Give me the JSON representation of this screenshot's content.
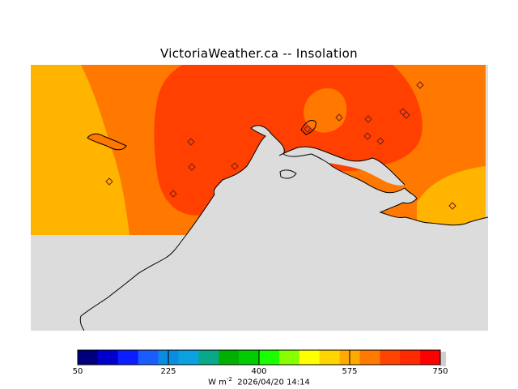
{
  "title": "VictoriaWeather.ca  --  Insolation",
  "colorbar": {
    "colors": [
      "#00007f",
      "#0000cc",
      "#0a1eff",
      "#1b5cff",
      "#0a8de0",
      "#0ca0e0",
      "#0aa88a",
      "#00b000",
      "#00cc00",
      "#19ff00",
      "#88ff00",
      "#ffff00",
      "#ffd500",
      "#ffaa00",
      "#ff7a00",
      "#ff4400",
      "#ff2a00",
      "#ff0000"
    ],
    "tick_labels": [
      "50",
      "225",
      "400",
      "575",
      "750"
    ],
    "min": 50,
    "max": 750
  },
  "units": "W m",
  "units_exponent": "-2",
  "timestamp": "2026/04/20 14:14",
  "palette": {
    "yellow_orange": "#ffb400",
    "orange": "#ff7800",
    "red_orange": "#ff4000",
    "land_gray": "#dcdcdc",
    "coast": "#000000"
  },
  "station_count": 14
}
